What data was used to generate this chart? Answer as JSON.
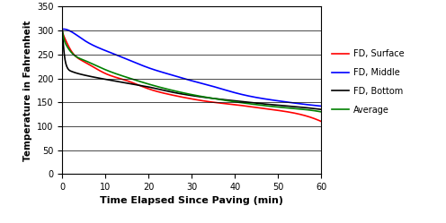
{
  "title": "",
  "xlabel": "Time Elapsed Since Paving (min)",
  "ylabel": "Temperature in Fahrenheit",
  "xlim": [
    0,
    60
  ],
  "ylim": [
    0,
    350
  ],
  "xticks": [
    0,
    10,
    20,
    30,
    40,
    50,
    60
  ],
  "yticks": [
    0,
    50,
    100,
    150,
    200,
    250,
    300,
    350
  ],
  "series": {
    "FD, Surface": {
      "color": "#FF0000",
      "points_x": [
        0,
        0.5,
        1,
        2,
        5,
        10,
        15,
        20,
        25,
        30,
        35,
        40,
        45,
        50,
        55,
        60
      ],
      "points_y": [
        296,
        285,
        275,
        258,
        235,
        210,
        195,
        178,
        166,
        157,
        150,
        145,
        139,
        133,
        125,
        110
      ]
    },
    "FD, Middle": {
      "color": "#0000FF",
      "points_x": [
        0,
        0.5,
        1,
        2,
        5,
        10,
        15,
        20,
        25,
        30,
        35,
        40,
        45,
        50,
        55,
        60
      ],
      "points_y": [
        303,
        303,
        302,
        298,
        280,
        258,
        240,
        222,
        208,
        195,
        183,
        170,
        160,
        153,
        147,
        142
      ]
    },
    "FD, Bottom": {
      "color": "#000000",
      "points_x": [
        0,
        0.5,
        1,
        2,
        5,
        10,
        15,
        20,
        25,
        30,
        35,
        40,
        45,
        50,
        55,
        60
      ],
      "points_y": [
        300,
        245,
        225,
        215,
        207,
        198,
        190,
        182,
        172,
        164,
        158,
        153,
        148,
        144,
        140,
        135
      ]
    },
    "Average": {
      "color": "#008000",
      "points_x": [
        0,
        0.5,
        1,
        2,
        5,
        10,
        15,
        20,
        25,
        30,
        35,
        40,
        45,
        50,
        55,
        60
      ],
      "points_y": [
        298,
        278,
        268,
        255,
        238,
        218,
        202,
        188,
        176,
        166,
        158,
        151,
        145,
        140,
        136,
        130
      ]
    }
  },
  "legend_order": [
    "FD, Surface",
    "FD, Middle",
    "FD, Bottom",
    "Average"
  ],
  "background_color": "#FFFFFF"
}
